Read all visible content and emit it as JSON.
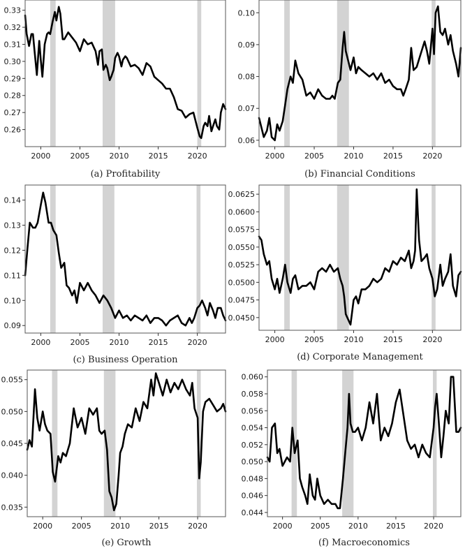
{
  "figure": {
    "line_color": "#000000",
    "recession_color": "#d3d3d3",
    "frame_color": "#555555"
  },
  "chart_data": [
    {
      "type": "line",
      "caption": "(a) Profitability",
      "xlim": [
        1998,
        2023.6
      ],
      "ylim": [
        0.25,
        0.336
      ],
      "x_ticks": [
        2000,
        2005,
        2010,
        2015,
        2020
      ],
      "x_tick_labels": [
        "2000",
        "2005",
        "2010",
        "2015",
        "2020"
      ],
      "y_ticks": [
        0.26,
        0.27,
        0.28,
        0.29,
        0.3,
        0.31,
        0.32,
        0.33
      ],
      "y_tick_labels": [
        "0.26",
        "0.27",
        "0.28",
        "0.29",
        "0.30",
        "0.31",
        "0.32",
        "0.33"
      ],
      "recessions": [
        [
          2001.2,
          2001.9
        ],
        [
          2007.9,
          2009.5
        ],
        [
          2020.0,
          2020.5
        ]
      ],
      "x": [
        1998.0,
        1998.2,
        1998.5,
        1998.8,
        1999.0,
        1999.2,
        1999.5,
        1999.8,
        2000.0,
        2000.2,
        2000.5,
        2000.8,
        2001.0,
        2001.2,
        2001.5,
        2001.8,
        2002.0,
        2002.3,
        2002.5,
        2002.8,
        2003.0,
        2003.5,
        2004.0,
        2004.5,
        2005.0,
        2005.5,
        2006.0,
        2006.5,
        2007.0,
        2007.3,
        2007.5,
        2007.8,
        2008.0,
        2008.3,
        2008.5,
        2008.8,
        2009.0,
        2009.3,
        2009.5,
        2009.8,
        2010.0,
        2010.3,
        2010.5,
        2010.8,
        2011.0,
        2011.5,
        2012.0,
        2012.5,
        2013.0,
        2013.5,
        2014.0,
        2014.5,
        2015.0,
        2015.5,
        2016.0,
        2016.5,
        2017.0,
        2017.5,
        2018.0,
        2018.5,
        2019.0,
        2019.5,
        2020.0,
        2020.3,
        2020.5,
        2020.8,
        2021.0,
        2021.3,
        2021.5,
        2021.8,
        2022.0,
        2022.3,
        2022.5,
        2022.8,
        2023.0,
        2023.3,
        2023.6
      ],
      "values": [
        0.327,
        0.316,
        0.309,
        0.316,
        0.316,
        0.306,
        0.292,
        0.312,
        0.301,
        0.291,
        0.31,
        0.316,
        0.317,
        0.316,
        0.323,
        0.329,
        0.324,
        0.332,
        0.328,
        0.313,
        0.313,
        0.317,
        0.314,
        0.311,
        0.306,
        0.313,
        0.31,
        0.311,
        0.306,
        0.298,
        0.306,
        0.307,
        0.295,
        0.298,
        0.296,
        0.289,
        0.291,
        0.295,
        0.302,
        0.305,
        0.303,
        0.297,
        0.301,
        0.303,
        0.302,
        0.297,
        0.298,
        0.296,
        0.292,
        0.299,
        0.297,
        0.291,
        0.289,
        0.287,
        0.284,
        0.284,
        0.279,
        0.272,
        0.271,
        0.267,
        0.269,
        0.27,
        0.261,
        0.256,
        0.255,
        0.262,
        0.264,
        0.262,
        0.268,
        0.259,
        0.262,
        0.266,
        0.262,
        0.26,
        0.27,
        0.275,
        0.272
      ]
    },
    {
      "type": "line",
      "caption": "(b) Financial Conditions",
      "xlim": [
        1998,
        2023.6
      ],
      "ylim": [
        0.058,
        0.104
      ],
      "x_ticks": [
        2000,
        2005,
        2010,
        2015,
        2020
      ],
      "x_tick_labels": [
        "2000",
        "2005",
        "2010",
        "2015",
        "2020"
      ],
      "y_ticks": [
        0.06,
        0.07,
        0.08,
        0.09,
        0.1
      ],
      "y_tick_labels": [
        "0.06",
        "0.07",
        "0.08",
        "0.09",
        "0.10"
      ],
      "recessions": [
        [
          2001.2,
          2001.9
        ],
        [
          2007.9,
          2009.4
        ],
        [
          2019.9,
          2020.4
        ]
      ],
      "x": [
        1998.0,
        1998.3,
        1998.6,
        1999.0,
        1999.3,
        1999.6,
        2000.0,
        2000.3,
        2000.6,
        2001.0,
        2001.3,
        2001.6,
        2002.0,
        2002.3,
        2002.6,
        2003.0,
        2003.5,
        2004.0,
        2004.5,
        2005.0,
        2005.5,
        2006.0,
        2006.5,
        2007.0,
        2007.3,
        2007.6,
        2008.0,
        2008.3,
        2008.6,
        2008.8,
        2009.0,
        2009.3,
        2009.6,
        2010.0,
        2010.3,
        2010.6,
        2011.0,
        2011.5,
        2012.0,
        2012.5,
        2013.0,
        2013.5,
        2014.0,
        2014.5,
        2015.0,
        2015.5,
        2016.0,
        2016.3,
        2016.6,
        2017.0,
        2017.3,
        2017.6,
        2018.0,
        2018.5,
        2019.0,
        2019.3,
        2019.6,
        2020.0,
        2020.2,
        2020.4,
        2020.7,
        2021.0,
        2021.3,
        2021.6,
        2022.0,
        2022.3,
        2022.6,
        2023.0,
        2023.3,
        2023.6
      ],
      "values": [
        0.067,
        0.064,
        0.061,
        0.063,
        0.067,
        0.061,
        0.06,
        0.065,
        0.063,
        0.066,
        0.071,
        0.076,
        0.08,
        0.078,
        0.085,
        0.081,
        0.079,
        0.074,
        0.075,
        0.073,
        0.076,
        0.074,
        0.073,
        0.073,
        0.074,
        0.073,
        0.078,
        0.079,
        0.089,
        0.094,
        0.088,
        0.085,
        0.082,
        0.086,
        0.081,
        0.083,
        0.082,
        0.081,
        0.08,
        0.081,
        0.079,
        0.081,
        0.078,
        0.079,
        0.077,
        0.076,
        0.076,
        0.074,
        0.076,
        0.079,
        0.089,
        0.082,
        0.083,
        0.087,
        0.091,
        0.088,
        0.084,
        0.095,
        0.087,
        0.1,
        0.102,
        0.094,
        0.093,
        0.095,
        0.09,
        0.093,
        0.088,
        0.084,
        0.08,
        0.089
      ]
    },
    {
      "type": "line",
      "caption": "(c) Business Operation",
      "xlim": [
        1998,
        2023.6
      ],
      "ylim": [
        0.087,
        0.146
      ],
      "x_ticks": [
        2000,
        2005,
        2010,
        2015,
        2020
      ],
      "x_tick_labels": [
        "2000",
        "2005",
        "2010",
        "2015",
        "2020"
      ],
      "y_ticks": [
        0.09,
        0.1,
        0.11,
        0.12,
        0.13,
        0.14
      ],
      "y_tick_labels": [
        "0.09",
        "0.10",
        "0.11",
        "0.12",
        "0.13",
        "0.14"
      ],
      "recessions": [
        [
          2001.2,
          2001.9
        ],
        [
          2007.9,
          2009.4
        ],
        [
          2019.9,
          2020.4
        ]
      ],
      "x": [
        1998.0,
        1998.3,
        1998.6,
        1999.0,
        1999.3,
        1999.6,
        2000.0,
        2000.3,
        2000.6,
        2001.0,
        2001.3,
        2001.6,
        2002.0,
        2002.3,
        2002.6,
        2003.0,
        2003.3,
        2003.6,
        2004.0,
        2004.3,
        2004.6,
        2005.0,
        2005.5,
        2006.0,
        2006.5,
        2007.0,
        2007.5,
        2008.0,
        2008.5,
        2009.0,
        2009.5,
        2010.0,
        2010.5,
        2011.0,
        2011.5,
        2012.0,
        2012.5,
        2013.0,
        2013.5,
        2014.0,
        2014.5,
        2015.0,
        2015.5,
        2016.0,
        2016.5,
        2017.0,
        2017.5,
        2018.0,
        2018.5,
        2019.0,
        2019.3,
        2019.6,
        2020.0,
        2020.3,
        2020.6,
        2021.0,
        2021.3,
        2021.6,
        2022.0,
        2022.3,
        2022.6,
        2023.0,
        2023.3,
        2023.6
      ],
      "values": [
        0.11,
        0.121,
        0.131,
        0.129,
        0.129,
        0.131,
        0.138,
        0.143,
        0.139,
        0.131,
        0.131,
        0.128,
        0.126,
        0.119,
        0.113,
        0.115,
        0.106,
        0.105,
        0.102,
        0.104,
        0.099,
        0.107,
        0.104,
        0.107,
        0.104,
        0.102,
        0.099,
        0.102,
        0.1,
        0.097,
        0.093,
        0.096,
        0.093,
        0.094,
        0.092,
        0.094,
        0.093,
        0.092,
        0.094,
        0.091,
        0.093,
        0.093,
        0.092,
        0.09,
        0.092,
        0.093,
        0.094,
        0.091,
        0.09,
        0.093,
        0.091,
        0.093,
        0.097,
        0.098,
        0.1,
        0.097,
        0.094,
        0.099,
        0.096,
        0.093,
        0.097,
        0.097,
        0.094,
        0.092
      ]
    },
    {
      "type": "line",
      "caption": "(d) Corporate Management",
      "xlim": [
        1998,
        2023.6
      ],
      "ylim": [
        0.0432,
        0.0638
      ],
      "x_ticks": [
        2000,
        2005,
        2010,
        2015,
        2020
      ],
      "x_tick_labels": [
        "2000",
        "2005",
        "2010",
        "2015",
        "2020"
      ],
      "y_ticks": [
        0.045,
        0.0475,
        0.05,
        0.0525,
        0.055,
        0.0575,
        0.06,
        0.0625
      ],
      "y_tick_labels": [
        "0.0450",
        "0.0475",
        "0.0500",
        "0.0525",
        "0.0550",
        "0.0575",
        "0.0600",
        "0.0625"
      ],
      "recessions": [
        [
          2001.2,
          2001.9
        ],
        [
          2007.9,
          2009.4
        ],
        [
          2019.9,
          2020.4
        ]
      ],
      "x": [
        1998.0,
        1998.3,
        1998.6,
        1999.0,
        1999.3,
        1999.6,
        2000.0,
        2000.3,
        2000.6,
        2001.0,
        2001.3,
        2001.6,
        2002.0,
        2002.3,
        2002.6,
        2003.0,
        2003.5,
        2004.0,
        2004.5,
        2005.0,
        2005.5,
        2006.0,
        2006.5,
        2007.0,
        2007.5,
        2008.0,
        2008.3,
        2008.6,
        2008.8,
        2009.0,
        2009.2,
        2009.4,
        2009.6,
        2010.0,
        2010.3,
        2010.6,
        2011.0,
        2011.5,
        2012.0,
        2012.5,
        2013.0,
        2013.5,
        2014.0,
        2014.5,
        2015.0,
        2015.5,
        2016.0,
        2016.5,
        2017.0,
        2017.3,
        2017.6,
        2017.8,
        2018.0,
        2018.3,
        2018.6,
        2019.0,
        2019.3,
        2019.6,
        2020.0,
        2020.3,
        2020.6,
        2021.0,
        2021.3,
        2021.6,
        2022.0,
        2022.3,
        2022.6,
        2023.0,
        2023.3,
        2023.6
      ],
      "values": [
        0.0565,
        0.056,
        0.054,
        0.0525,
        0.053,
        0.0505,
        0.049,
        0.0505,
        0.0485,
        0.0505,
        0.0525,
        0.05,
        0.0485,
        0.0505,
        0.051,
        0.049,
        0.0495,
        0.0495,
        0.05,
        0.049,
        0.0515,
        0.052,
        0.0515,
        0.0525,
        0.0515,
        0.052,
        0.0505,
        0.0495,
        0.048,
        0.0455,
        0.045,
        0.0445,
        0.044,
        0.0475,
        0.048,
        0.047,
        0.049,
        0.049,
        0.0495,
        0.0505,
        0.05,
        0.0505,
        0.052,
        0.0515,
        0.053,
        0.0525,
        0.0535,
        0.053,
        0.0545,
        0.052,
        0.053,
        0.0545,
        0.0632,
        0.056,
        0.053,
        0.0535,
        0.054,
        0.052,
        0.0505,
        0.048,
        0.049,
        0.0525,
        0.0495,
        0.0505,
        0.0515,
        0.054,
        0.0495,
        0.048,
        0.051,
        0.0515
      ]
    },
    {
      "type": "line",
      "caption": "(e) Growth",
      "xlim": [
        1998,
        2023.6
      ],
      "ylim": [
        0.0335,
        0.0565
      ],
      "x_ticks": [
        2000,
        2005,
        2010,
        2015,
        2020
      ],
      "x_tick_labels": [
        "2000",
        "2005",
        "2010",
        "2015",
        "2020"
      ],
      "y_ticks": [
        0.035,
        0.04,
        0.045,
        0.05,
        0.055
      ],
      "y_tick_labels": [
        "0.035",
        "0.040",
        "0.045",
        "0.050",
        "0.055"
      ],
      "recessions": [
        [
          2001.2,
          2001.9
        ],
        [
          2007.9,
          2009.4
        ],
        [
          2019.9,
          2020.4
        ]
      ],
      "x": [
        1998.0,
        1998.3,
        1998.6,
        1999.0,
        1999.3,
        1999.6,
        2000.0,
        2000.3,
        2000.6,
        2001.0,
        2001.3,
        2001.6,
        2002.0,
        2002.3,
        2002.6,
        2003.0,
        2003.5,
        2004.0,
        2004.5,
        2005.0,
        2005.5,
        2006.0,
        2006.5,
        2007.0,
        2007.3,
        2007.6,
        2008.0,
        2008.3,
        2008.6,
        2008.9,
        2009.2,
        2009.5,
        2009.8,
        2010.0,
        2010.3,
        2010.6,
        2011.0,
        2011.5,
        2012.0,
        2012.5,
        2013.0,
        2013.5,
        2014.0,
        2014.3,
        2014.6,
        2015.0,
        2015.5,
        2016.0,
        2016.5,
        2017.0,
        2017.5,
        2018.0,
        2018.5,
        2019.0,
        2019.3,
        2019.6,
        2020.0,
        2020.2,
        2020.4,
        2020.7,
        2021.0,
        2021.5,
        2022.0,
        2022.5,
        2023.0,
        2023.3,
        2023.6
      ],
      "values": [
        0.044,
        0.0455,
        0.0445,
        0.0535,
        0.049,
        0.047,
        0.05,
        0.048,
        0.047,
        0.0465,
        0.0405,
        0.039,
        0.043,
        0.042,
        0.0435,
        0.043,
        0.045,
        0.0505,
        0.0475,
        0.049,
        0.0465,
        0.0505,
        0.0495,
        0.0505,
        0.047,
        0.0465,
        0.047,
        0.044,
        0.0375,
        0.0365,
        0.0345,
        0.0355,
        0.04,
        0.0435,
        0.0445,
        0.0465,
        0.048,
        0.0475,
        0.0505,
        0.0485,
        0.0515,
        0.0505,
        0.055,
        0.0525,
        0.056,
        0.0545,
        0.0525,
        0.055,
        0.053,
        0.0545,
        0.0535,
        0.055,
        0.0535,
        0.0525,
        0.0545,
        0.0505,
        0.049,
        0.0395,
        0.042,
        0.05,
        0.0515,
        0.052,
        0.051,
        0.05,
        0.0505,
        0.0512,
        0.05
      ]
    },
    {
      "type": "line",
      "caption": "(f) Macroeconomics",
      "xlim": [
        1998,
        2023.6
      ],
      "ylim": [
        0.0435,
        0.0608
      ],
      "x_ticks": [
        2000,
        2005,
        2010,
        2015,
        2020
      ],
      "x_tick_labels": [
        "2000",
        "2005",
        "2010",
        "2015",
        "2020"
      ],
      "y_ticks": [
        0.044,
        0.046,
        0.048,
        0.05,
        0.052,
        0.054,
        0.056,
        0.058,
        0.06
      ],
      "y_tick_labels": [
        "0.044",
        "0.046",
        "0.048",
        "0.050",
        "0.052",
        "0.054",
        "0.056",
        "0.058",
        "0.060"
      ],
      "recessions": [
        [
          2001.2,
          2001.9
        ],
        [
          2007.9,
          2009.4
        ],
        [
          2019.9,
          2020.4
        ]
      ],
      "x": [
        1998.0,
        1998.3,
        1998.6,
        1999.0,
        1999.3,
        1999.6,
        2000.0,
        2000.3,
        2000.6,
        2001.0,
        2001.3,
        2001.6,
        2002.0,
        2002.3,
        2002.6,
        2003.0,
        2003.3,
        2003.6,
        2004.0,
        2004.3,
        2004.6,
        2005.0,
        2005.5,
        2006.0,
        2006.5,
        2007.0,
        2007.3,
        2007.6,
        2008.0,
        2008.3,
        2008.6,
        2008.8,
        2009.0,
        2009.3,
        2009.6,
        2010.0,
        2010.5,
        2011.0,
        2011.5,
        2012.0,
        2012.5,
        2013.0,
        2013.5,
        2014.0,
        2014.5,
        2015.0,
        2015.5,
        2016.0,
        2016.5,
        2017.0,
        2017.5,
        2018.0,
        2018.5,
        2019.0,
        2019.5,
        2020.0,
        2020.2,
        2020.4,
        2020.7,
        2021.0,
        2021.3,
        2021.6,
        2022.0,
        2022.3,
        2022.6,
        2023.0,
        2023.3,
        2023.6
      ],
      "values": [
        0.0505,
        0.05,
        0.054,
        0.0545,
        0.051,
        0.0515,
        0.0495,
        0.05,
        0.0505,
        0.05,
        0.054,
        0.051,
        0.0525,
        0.048,
        0.047,
        0.046,
        0.045,
        0.0485,
        0.046,
        0.0455,
        0.048,
        0.046,
        0.045,
        0.0455,
        0.045,
        0.045,
        0.0445,
        0.0445,
        0.048,
        0.051,
        0.054,
        0.058,
        0.0545,
        0.0535,
        0.0535,
        0.054,
        0.0525,
        0.054,
        0.057,
        0.0545,
        0.058,
        0.0525,
        0.054,
        0.053,
        0.0545,
        0.057,
        0.0585,
        0.0555,
        0.0525,
        0.0515,
        0.052,
        0.0505,
        0.052,
        0.051,
        0.0505,
        0.054,
        0.0565,
        0.058,
        0.0545,
        0.0505,
        0.053,
        0.056,
        0.0545,
        0.06,
        0.06,
        0.0535,
        0.0535,
        0.054
      ]
    }
  ]
}
